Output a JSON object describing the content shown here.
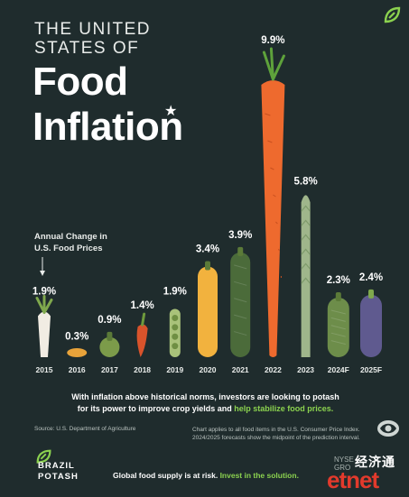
{
  "header": {
    "title_line1": "THE UNITED",
    "title_line2": "STATES OF",
    "title_food": "Food",
    "title_inflation": "Inflation",
    "star": "★"
  },
  "annotation": {
    "line1": "Annual Change in",
    "line2": "U.S. Food Prices"
  },
  "chart_data": {
    "type": "bar",
    "title": "THE UNITED STATES OF Food Inflation",
    "ylabel": "Annual Change in U.S. Food Prices",
    "categories": [
      "2015",
      "2016",
      "2017",
      "2018",
      "2019",
      "2020",
      "2021",
      "2022",
      "2023",
      "2024F",
      "2025F"
    ],
    "values": [
      1.9,
      0.3,
      0.9,
      1.4,
      1.9,
      3.4,
      3.9,
      9.9,
      5.8,
      2.3,
      2.4
    ],
    "value_labels": [
      "1.9%",
      "0.3%",
      "0.9%",
      "1.4%",
      "1.9%",
      "3.4%",
      "3.9%",
      "9.9%",
      "5.8%",
      "2.3%",
      "2.4%"
    ],
    "vegetables": [
      "radish",
      "potato",
      "pear",
      "chili",
      "pea pod",
      "squash",
      "zucchini",
      "carrot",
      "asparagus",
      "cucumber",
      "eggplant"
    ],
    "colors": [
      "#f1ece3",
      "#e8a33a",
      "#7c9b4a",
      "#d9532b",
      "#a9c27a",
      "#f2b23e",
      "#4b6b3a",
      "#ee6a2e",
      "#9fb68b",
      "#6d8d4a",
      "#5f5a8f"
    ]
  },
  "footer": {
    "statement_a": "With inflation above historical norms, investors are looking to potash",
    "statement_b": "for its power to improve crop yields and ",
    "statement_highlight": "help stabilize food prices.",
    "source": "Source: U.S. Department of Agriculture",
    "note_line1": "Chart applies to all food items in the U.S. Consumer Price Index.",
    "note_line2": "2024/2025 forecasts show the midpoint of the prediction interval."
  },
  "brand": {
    "name_line1": "BRAZIL",
    "name_line2": "POTASH",
    "tagline": "Global food supply is at risk. ",
    "tagline_highlight": "Invest in the solution.",
    "exchange_line1": "NYSE",
    "exchange_line2": "GRO"
  },
  "watermark": {
    "cn": "经济通",
    "text": "etnet"
  },
  "colors": {
    "background": "#1f2c2d",
    "accent_green": "#8bd24f",
    "text": "#ffffff"
  }
}
